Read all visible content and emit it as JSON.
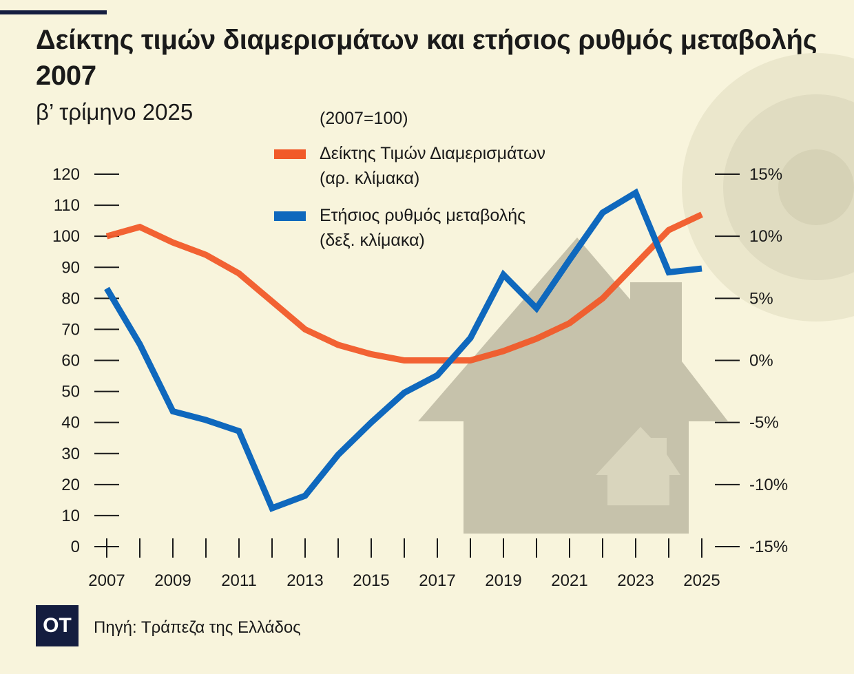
{
  "header": {
    "title": "Δείκτης τιμών διαμερισμάτων και ετήσιος ρυθμός μεταβολής 2007",
    "subtitle": "β’ τρίμηνο 2025",
    "note": "(2007=100)"
  },
  "footer": {
    "logo": "OT",
    "source": "Πηγή: Τράπεζα της Ελλάδος"
  },
  "colors": {
    "background": "#f8f4dc",
    "index": "#f15a29",
    "change": "#0f68bd",
    "navy": "#141d3f",
    "house": "#b5b29c"
  },
  "chart_data": {
    "type": "line",
    "title": "Δείκτης τιμών διαμερισμάτων και ετήσιος ρυθμός μεταβολής 2007",
    "x": [
      2007,
      2008,
      2009,
      2010,
      2011,
      2012,
      2013,
      2014,
      2015,
      2016,
      2017,
      2018,
      2019,
      2020,
      2021,
      2022,
      2023,
      2024,
      2025
    ],
    "x_tick_labels": [
      "2007",
      "2009",
      "2011",
      "2013",
      "2015",
      "2017",
      "2019",
      "2021",
      "2023",
      "2025"
    ],
    "left_axis": {
      "ylim": [
        0,
        120
      ],
      "tick_labels": [
        "0",
        "10",
        "20",
        "30",
        "40",
        "50",
        "60",
        "70",
        "80",
        "90",
        "100",
        "110",
        "120"
      ]
    },
    "right_axis": {
      "ylim": [
        -15,
        15
      ],
      "tick_labels": [
        "-15%",
        "-10%",
        "-5%",
        "0%",
        "5%",
        "10%",
        "15%"
      ]
    },
    "legend_placement": "top-center",
    "series": [
      {
        "name": "Δείκτης Τιμών Διαμερισμάτων",
        "name_line2": "(αρ. κλίμακα)",
        "axis": "left",
        "color": "#f15a29",
        "values": [
          100,
          103,
          98,
          94,
          88,
          79,
          70,
          65,
          62,
          60,
          60,
          60,
          63,
          67,
          72,
          80,
          91,
          102,
          107
        ]
      },
      {
        "name": "Ετήσιος ρυθμός μεταβολής",
        "name_line2": "(δεξ. κλίμακα)",
        "axis": "right",
        "color": "#0f68bd",
        "values": [
          5.8,
          1.3,
          -4.1,
          -4.8,
          -5.7,
          -11.9,
          -10.9,
          -7.6,
          -5.0,
          -2.6,
          -1.2,
          1.8,
          6.9,
          4.2,
          8.1,
          11.9,
          13.5,
          7.1,
          7.4
        ]
      }
    ]
  }
}
